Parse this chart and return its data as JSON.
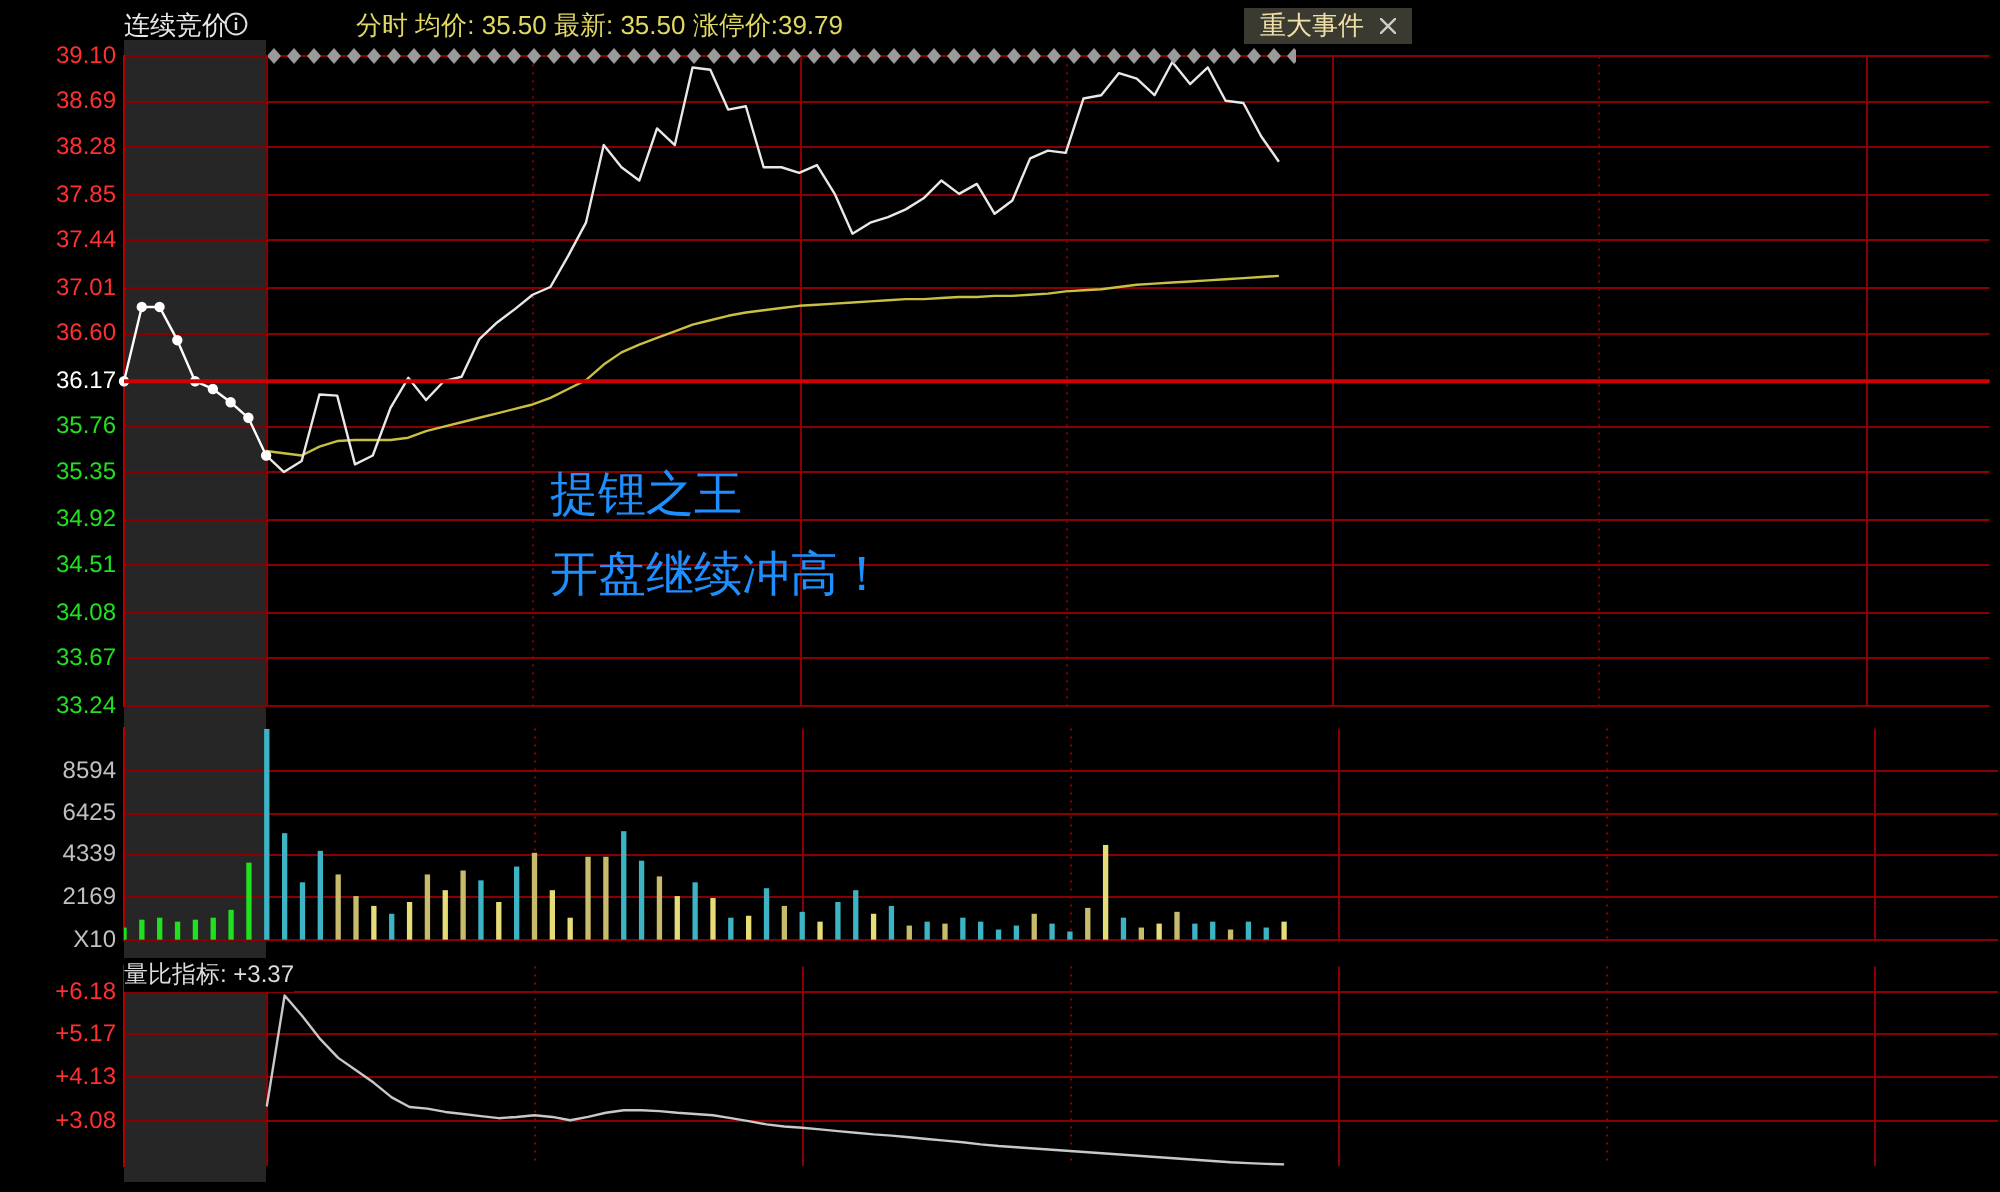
{
  "chart_data": [
    {
      "type": "line",
      "title": "连续竞价",
      "subtitle": "分时 均价: 35.50 最新: 35.50 涨停价:39.79",
      "categories": [
        null,
        null,
        null,
        null,
        null,
        null,
        null,
        null,
        null,
        null,
        null,
        null,
        null,
        null,
        null,
        null,
        null,
        null,
        null,
        null,
        null,
        null,
        null,
        null,
        null,
        null,
        null,
        null,
        null,
        null,
        null,
        null,
        null,
        null,
        null,
        null,
        null,
        null,
        null,
        null,
        null,
        null,
        null,
        null,
        null,
        null,
        null,
        null,
        null,
        null,
        null,
        null,
        null,
        null,
        null,
        null,
        null,
        null,
        null,
        null,
        null,
        null,
        null,
        null,
        null,
        null,
        null,
        null,
        null,
        null,
        null,
        null,
        null,
        null,
        null,
        null,
        null,
        null,
        null,
        null,
        null,
        null,
        null,
        null,
        null,
        null,
        null,
        null,
        null,
        null,
        null,
        null,
        null,
        null,
        null,
        null,
        null,
        null,
        null,
        null,
        null,
        null,
        null,
        null,
        null,
        null
      ],
      "series": [
        {
          "color": "#ffffff",
          "marker": "circle",
          "values": [
            36.17,
            36.84,
            36.84,
            36.54,
            36.17,
            36.1,
            35.98,
            35.84,
            35.5,
            null,
            null,
            null,
            null,
            null,
            null,
            null,
            null,
            null,
            null,
            null,
            null,
            null,
            null,
            null,
            null,
            null,
            null,
            null,
            null,
            null,
            null,
            null,
            null,
            null,
            null,
            null,
            null,
            null,
            null,
            null,
            null,
            null,
            null,
            null,
            null,
            null,
            null,
            null,
            null,
            null,
            null,
            null,
            null,
            null,
            null,
            null,
            null,
            null,
            null,
            null,
            null,
            null,
            null,
            null,
            null,
            null,
            null,
            null,
            null,
            null,
            null,
            null,
            null,
            null,
            null,
            null,
            null,
            null,
            null,
            null,
            null,
            null,
            null,
            null,
            null,
            null,
            null,
            null,
            null,
            null,
            null,
            null,
            null,
            null,
            null,
            null,
            null,
            null,
            null,
            null,
            null,
            null,
            null,
            null,
            null,
            null
          ]
        },
        {
          "color": "#e8e8e8",
          "marker": "none",
          "values": [
            null,
            null,
            null,
            null,
            null,
            null,
            null,
            null,
            35.5,
            35.35,
            35.45,
            36.05,
            36.04,
            35.42,
            35.5,
            35.93,
            36.2,
            36.0,
            36.17,
            36.21,
            36.55,
            36.7,
            36.82,
            36.95,
            37.02,
            37.3,
            37.6,
            38.3,
            38.1,
            37.98,
            38.45,
            38.3,
            39.0,
            38.98,
            38.62,
            38.65,
            38.1,
            38.1,
            38.05,
            38.12,
            37.86,
            37.5,
            37.6,
            37.65,
            37.72,
            37.82,
            37.98,
            37.86,
            37.95,
            37.68,
            37.8,
            38.18,
            38.25,
            38.23,
            38.72,
            38.75,
            38.95,
            38.9,
            38.75,
            39.05,
            38.85,
            39.0,
            38.7,
            38.68,
            38.38,
            38.15,
            null,
            null,
            null,
            null,
            null,
            null,
            null,
            null,
            null,
            null,
            null,
            null,
            null,
            null,
            null,
            null,
            null,
            null,
            null,
            null,
            null,
            null,
            null,
            null,
            null,
            null,
            null,
            null,
            null,
            null,
            null,
            null,
            null,
            null,
            null,
            null,
            null,
            null,
            null,
            null
          ]
        },
        {
          "color": "#c8c040",
          "marker": "none",
          "values": [
            null,
            null,
            null,
            null,
            null,
            null,
            null,
            null,
            35.54,
            35.52,
            35.5,
            35.58,
            35.63,
            35.64,
            35.64,
            35.64,
            35.66,
            35.72,
            35.76,
            35.8,
            35.84,
            35.88,
            35.92,
            35.96,
            36.02,
            36.1,
            36.18,
            36.32,
            36.43,
            36.5,
            36.56,
            36.62,
            36.68,
            36.72,
            36.76,
            36.79,
            36.81,
            36.83,
            36.85,
            36.86,
            36.87,
            36.88,
            36.89,
            36.9,
            36.91,
            36.91,
            36.92,
            36.93,
            36.93,
            36.94,
            36.94,
            36.95,
            36.96,
            36.98,
            36.99,
            37.0,
            37.02,
            37.04,
            37.05,
            37.06,
            37.07,
            37.08,
            37.09,
            37.1,
            37.11,
            37.12,
            null,
            null,
            null,
            null,
            null,
            null,
            null,
            null,
            null,
            null,
            null,
            null,
            null,
            null,
            null,
            null,
            null,
            null,
            null,
            null,
            null,
            null,
            null,
            null,
            null,
            null,
            null,
            null,
            null,
            null,
            null,
            null,
            null,
            null,
            null,
            null,
            null,
            null,
            null,
            null
          ]
        }
      ],
      "ylim": [
        33.24,
        39.1
      ],
      "yticks": [
        {
          "value": 39.1,
          "label": "39.10"
        },
        38.69,
        38.28,
        37.85,
        37.44,
        37.01,
        {
          "value": 36.6,
          "label": "36.60"
        },
        36.17,
        35.76,
        35.35,
        34.92,
        34.51,
        34.08,
        33.67,
        33.24
      ],
      "ref_lines": [
        {
          "axis": "y",
          "value": 36.17,
          "color": "#d00000"
        }
      ],
      "annotations": [
        "提锂之王",
        "开盘继续冲高！",
        "重大事件"
      ],
      "grid": true,
      "legend": false,
      "tick_labels": "y",
      "line_style": "solid"
    },
    {
      "type": "bar",
      "categories": [
        null,
        null,
        null,
        null,
        null,
        null,
        null,
        null,
        null,
        null,
        null,
        null,
        null,
        null,
        null,
        null,
        null,
        null,
        null,
        null,
        null,
        null,
        null,
        null,
        null,
        null,
        null,
        null,
        null,
        null,
        null,
        null,
        null,
        null,
        null,
        null,
        null,
        null,
        null,
        null,
        null,
        null,
        null,
        null,
        null,
        null,
        null,
        null,
        null,
        null,
        null,
        null,
        null,
        null,
        null,
        null,
        null,
        null,
        null,
        null,
        null,
        null,
        null,
        null,
        null,
        null,
        null,
        null,
        null,
        null,
        null,
        null,
        null,
        null,
        null,
        null,
        null,
        null,
        null,
        null,
        null,
        null,
        null,
        null,
        null,
        null,
        null,
        null,
        null,
        null,
        null,
        null,
        null,
        null,
        null,
        null,
        null,
        null,
        null,
        null,
        null,
        null,
        null,
        null,
        null,
        null
      ],
      "values": [
        600,
        1000,
        1100,
        900,
        1000,
        1100,
        1500,
        3900,
        10700,
        5400,
        2900,
        4500,
        3300,
        2200,
        1700,
        1300,
        1900,
        3300,
        2500,
        3500,
        3000,
        1900,
        3700,
        4400,
        2500,
        1100,
        4200,
        4200,
        5500,
        4000,
        3200,
        2200,
        2900,
        2100,
        1100,
        1200,
        2600,
        1700,
        1400,
        900,
        1900,
        2500,
        1300,
        1700,
        700,
        900,
        800,
        1100,
        900,
        500,
        700,
        1300,
        800,
        400,
        1600,
        4800,
        1100,
        600,
        800,
        1400,
        800,
        900,
        500,
        900,
        600,
        900,
        null,
        null,
        null,
        null,
        null,
        null,
        null,
        null,
        null,
        null,
        null,
        null,
        null,
        null,
        null,
        null,
        null,
        null,
        null,
        null,
        null,
        null,
        null,
        null,
        null,
        null,
        null,
        null,
        null,
        null,
        null,
        null,
        null,
        null,
        null,
        null,
        null,
        null,
        null,
        null
      ],
      "colors": [
        "#20e020",
        "#20e020",
        "#20e020",
        "#20e020",
        "#20e020",
        "#20e020",
        "#20e020",
        "#20e020",
        "#3cb4c4",
        "#3cb4c4",
        "#3cb4c4",
        "#3cb4c4",
        "#c8bc6c",
        "#c8bc6c",
        "#e6dc78",
        "#3cb4c4",
        "#e6dc78",
        "#c8bc6c",
        "#e6dc78",
        "#c8bc6c",
        "#3cb4c4",
        "#e6dc78",
        "#3cb4c4",
        "#c8bc6c",
        "#e6dc78",
        "#e6dc78",
        "#c8bc6c",
        "#c8bc6c",
        "#3cb4c4",
        "#3cb4c4",
        "#c8bc6c",
        "#e6dc78",
        "#3cb4c4",
        "#e6dc78",
        "#3cb4c4",
        "#e6dc78",
        "#3cb4c4",
        "#c8bc6c",
        "#3cb4c4",
        "#e6dc78",
        "#3cb4c4",
        "#3cb4c4",
        "#e6dc78",
        "#3cb4c4",
        "#c8bc6c",
        "#3cb4c4",
        "#c8bc6c",
        "#3cb4c4",
        "#3cb4c4",
        "#3cb4c4",
        "#3cb4c4",
        "#c8bc6c",
        "#3cb4c4",
        "#3cb4c4",
        "#c8bc6c",
        "#e6dc78",
        "#3cb4c4",
        "#c8bc6c",
        "#e6dc78",
        "#c8bc6c",
        "#3cb4c4",
        "#3cb4c4",
        "#c8bc6c",
        "#3cb4c4",
        "#3cb4c4",
        "#e6dc78",
        "#3cb4c4",
        "#3cb4c4",
        "#3cb4c4",
        "#3cb4c4",
        "#3cb4c4",
        "#3cb4c4",
        "#3cb4c4",
        "#3cb4c4",
        "#3cb4c4",
        "#3cb4c4",
        "#3cb4c4",
        "#3cb4c4",
        "#3cb4c4",
        "#3cb4c4",
        "#3cb4c4",
        "#3cb4c4",
        "#3cb4c4",
        "#3cb4c4",
        "#3cb4c4",
        "#3cb4c4",
        "#3cb4c4",
        "#3cb4c4",
        "#3cb4c4",
        "#3cb4c4",
        "#3cb4c4",
        "#3cb4c4",
        "#3cb4c4",
        "#3cb4c4",
        "#3cb4c4",
        "#3cb4c4",
        "#3cb4c4",
        "#3cb4c4",
        "#3cb4c4",
        "#3cb4c4",
        "#3cb4c4",
        "#3cb4c4",
        "#3cb4c4",
        "#3cb4c4",
        "#3cb4c4",
        "#3cb4c4"
      ],
      "ylim": [
        0,
        10760
      ],
      "yticks": [
        {
          "value": 0,
          "label": "X10"
        },
        2169,
        4339,
        6425,
        8594
      ],
      "grid": true,
      "legend": false,
      "tick_labels": "y"
    },
    {
      "type": "line",
      "title": "量比指标: +3.37",
      "categories": [
        null,
        null,
        null,
        null,
        null,
        null,
        null,
        null,
        null,
        null,
        null,
        null,
        null,
        null,
        null,
        null,
        null,
        null,
        null,
        null,
        null,
        null,
        null,
        null,
        null,
        null,
        null,
        null,
        null,
        null,
        null,
        null,
        null,
        null,
        null,
        null,
        null,
        null,
        null,
        null,
        null,
        null,
        null,
        null,
        null,
        null,
        null,
        null,
        null,
        null,
        null,
        null,
        null,
        null,
        null,
        null,
        null,
        null,
        null,
        null,
        null,
        null,
        null,
        null,
        null,
        null,
        null,
        null,
        null,
        null,
        null,
        null,
        null,
        null,
        null,
        null,
        null,
        null,
        null,
        null,
        null,
        null,
        null,
        null,
        null,
        null,
        null,
        null,
        null,
        null,
        null,
        null,
        null,
        null,
        null,
        null,
        null,
        null,
        null,
        null,
        null,
        null,
        null,
        null,
        null,
        null
      ],
      "series": [
        {
          "color": "#c8c8c8",
          "values": [
            null,
            null,
            null,
            null,
            null,
            null,
            null,
            null,
            3.43,
            6.1,
            5.6,
            5.05,
            4.6,
            4.3,
            4.0,
            3.65,
            3.42,
            3.38,
            3.3,
            3.25,
            3.2,
            3.15,
            3.18,
            3.22,
            3.18,
            3.1,
            3.18,
            3.28,
            3.34,
            3.34,
            3.32,
            3.28,
            3.25,
            3.22,
            3.15,
            3.08,
            3.0,
            2.95,
            2.92,
            2.88,
            2.84,
            2.8,
            2.76,
            2.73,
            2.69,
            2.65,
            2.61,
            2.57,
            2.52,
            2.48,
            2.45,
            2.42,
            2.39,
            2.36,
            2.33,
            2.3,
            2.27,
            2.24,
            2.21,
            2.18,
            2.15,
            2.12,
            2.09,
            2.07,
            2.05,
            2.04,
            null,
            null,
            null,
            null,
            null,
            null,
            null,
            null,
            null,
            null,
            null,
            null,
            null,
            null,
            null,
            null,
            null,
            null,
            null,
            null,
            null,
            null,
            null,
            null,
            null,
            null,
            null,
            null,
            null,
            null,
            null,
            null,
            null,
            null,
            null,
            null,
            null,
            null,
            null,
            null
          ]
        }
      ],
      "ylim": [
        2.0,
        6.8
      ],
      "yticks": [
        {
          "value": 3.08,
          "label": "+3.08"
        },
        {
          "value": 4.13,
          "label": "+4.13"
        },
        {
          "value": 5.17,
          "label": "+5.17"
        },
        {
          "value": 6.18,
          "label": "+6.18"
        }
      ],
      "grid": true,
      "legend": false,
      "tick_labels": "y",
      "marker": "none",
      "line_style": "solid"
    }
  ]
}
